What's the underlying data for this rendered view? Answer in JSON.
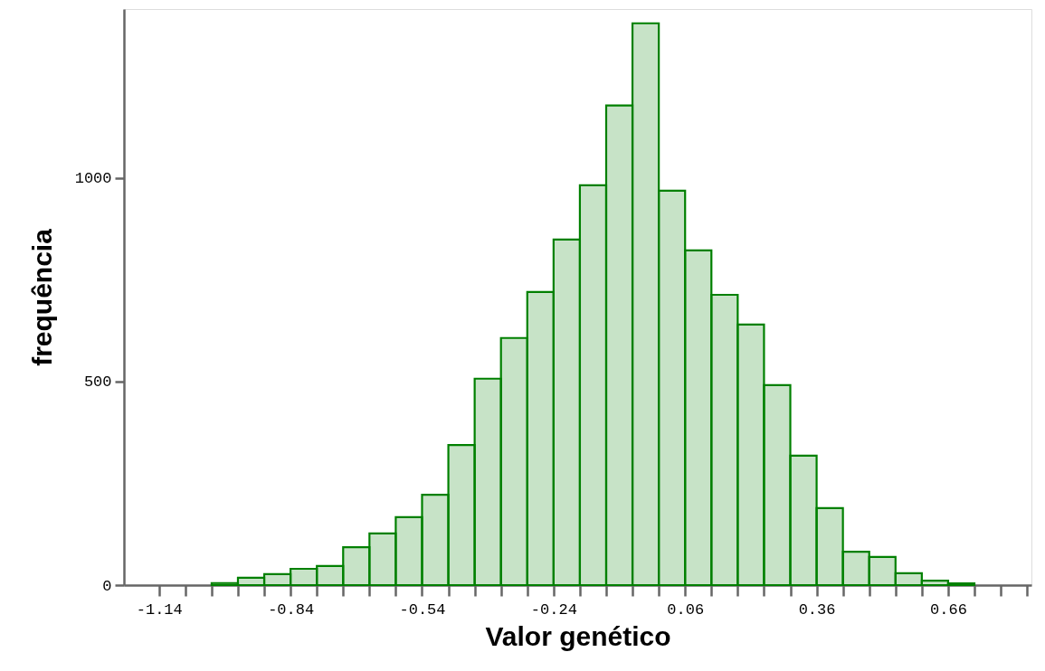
{
  "chart_data": {
    "type": "histogram",
    "xlabel": "Valor genético",
    "ylabel": "frequência",
    "bins": [
      -1.02,
      -0.96,
      -0.9,
      -0.84,
      -0.78,
      -0.72,
      -0.66,
      -0.6,
      -0.54,
      -0.48,
      -0.42,
      -0.36,
      -0.3,
      -0.24,
      -0.18,
      -0.12,
      -0.06,
      0.0,
      0.06,
      0.12,
      0.18,
      0.24,
      0.3,
      0.36,
      0.42,
      0.48,
      0.54,
      0.6,
      0.66,
      0.72
    ],
    "values": [
      5,
      18,
      27,
      40,
      47,
      93,
      127,
      167,
      222,
      344,
      507,
      607,
      720,
      849,
      982,
      1178,
      1380,
      969,
      822,
      713,
      640,
      491,
      318,
      189,
      82,
      69,
      29,
      11,
      4
    ],
    "color": "#008000",
    "xlim": [
      -1.22,
      0.85
    ],
    "xticks": [
      -1.14,
      {
        "value": -1.08,
        "label": null
      },
      {
        "value": -1.02,
        "label": null
      },
      {
        "value": -0.96,
        "label": null
      },
      {
        "value": -0.9,
        "label": null
      },
      -0.84,
      {
        "value": -0.78,
        "label": null
      },
      {
        "value": -0.72,
        "label": null
      },
      {
        "value": -0.66,
        "label": null
      },
      {
        "value": -0.6,
        "label": null
      },
      -0.54,
      {
        "value": -0.48,
        "label": null
      },
      {
        "value": -0.42,
        "label": null
      },
      {
        "value": -0.36,
        "label": null
      },
      {
        "value": -0.3,
        "label": null
      },
      -0.24,
      {
        "value": -0.18,
        "label": null
      },
      {
        "value": -0.12,
        "label": null
      },
      {
        "value": -0.06,
        "label": null
      },
      {
        "value": 0.0,
        "label": null
      },
      0.06,
      {
        "value": 0.12,
        "label": null
      },
      {
        "value": 0.18,
        "label": null
      },
      {
        "value": 0.24,
        "label": null
      },
      {
        "value": 0.3,
        "label": null
      },
      0.36,
      {
        "value": 0.42,
        "label": null
      },
      {
        "value": 0.48,
        "label": null
      },
      {
        "value": 0.54,
        "label": null
      },
      {
        "value": 0.6,
        "label": null
      },
      0.66,
      {
        "value": 0.72,
        "label": null
      },
      {
        "value": 0.78,
        "label": null
      },
      {
        "value": 0.84,
        "label": null
      }
    ],
    "ylim": [
      0,
      1415
    ],
    "yticks": [
      0,
      500,
      1000
    ],
    "grid": false
  }
}
